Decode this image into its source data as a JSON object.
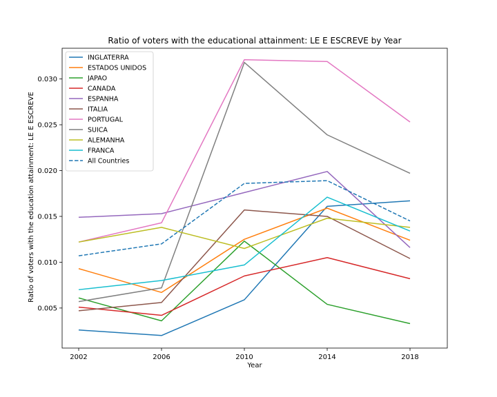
{
  "chart_data": {
    "type": "line",
    "title": "Ratio of voters with the educational attainment: LE E ESCREVE by Year",
    "xlabel": "Year",
    "ylabel": "Ratio of voters with the education attainment: LE E ESCREVE",
    "x": [
      2002,
      2006,
      2010,
      2014,
      2018
    ],
    "x_ticks": [
      "2002",
      "2006",
      "2010",
      "2014",
      "2018"
    ],
    "xlim": [
      2001.2,
      2019.8
    ],
    "y_ticks": [
      "0.005",
      "0.010",
      "0.015",
      "0.020",
      "0.025",
      "0.030"
    ],
    "ylim": [
      0.00063,
      0.03335
    ],
    "grid": false,
    "legend_position": "upper-left",
    "series": [
      {
        "name": "INGLATERRA",
        "color": "#1f77b4",
        "dash": false,
        "values": [
          0.0026,
          0.002,
          0.0059,
          0.0161,
          0.0167
        ]
      },
      {
        "name": "ESTADOS UNIDOS",
        "color": "#ff7f0e",
        "dash": false,
        "values": [
          0.0093,
          0.0067,
          0.0125,
          0.0159,
          0.0124
        ]
      },
      {
        "name": "JAPAO",
        "color": "#2ca02c",
        "dash": false,
        "values": [
          0.0061,
          0.0036,
          0.0123,
          0.0054,
          0.0033
        ]
      },
      {
        "name": "CANADA",
        "color": "#d62728",
        "dash": false,
        "values": [
          0.0051,
          0.0042,
          0.0085,
          0.0105,
          0.0082
        ]
      },
      {
        "name": "ESPANHA",
        "color": "#9467bd",
        "dash": false,
        "values": [
          0.0149,
          0.0153,
          0.0176,
          0.0199,
          0.0116
        ]
      },
      {
        "name": "ITALIA",
        "color": "#8c564b",
        "dash": false,
        "values": [
          0.0047,
          0.0056,
          0.0157,
          0.015,
          0.0104
        ]
      },
      {
        "name": "PORTUGAL",
        "color": "#e377c2",
        "dash": false,
        "values": [
          0.0122,
          0.0143,
          0.0321,
          0.0319,
          0.0253
        ]
      },
      {
        "name": "SUICA",
        "color": "#7f7f7f",
        "dash": false,
        "values": [
          0.0057,
          0.0072,
          0.0318,
          0.0239,
          0.0197
        ]
      },
      {
        "name": "ALEMANHA",
        "color": "#bcbd22",
        "dash": false,
        "values": [
          0.0122,
          0.0138,
          0.0115,
          0.0148,
          0.0138
        ]
      },
      {
        "name": "FRANCA",
        "color": "#17becf",
        "dash": false,
        "values": [
          0.007,
          0.008,
          0.0097,
          0.0171,
          0.0134
        ]
      },
      {
        "name": "All Countries",
        "color": "#1f77b4",
        "dash": true,
        "values": [
          0.0107,
          0.012,
          0.0186,
          0.0189,
          0.0145
        ]
      }
    ]
  }
}
